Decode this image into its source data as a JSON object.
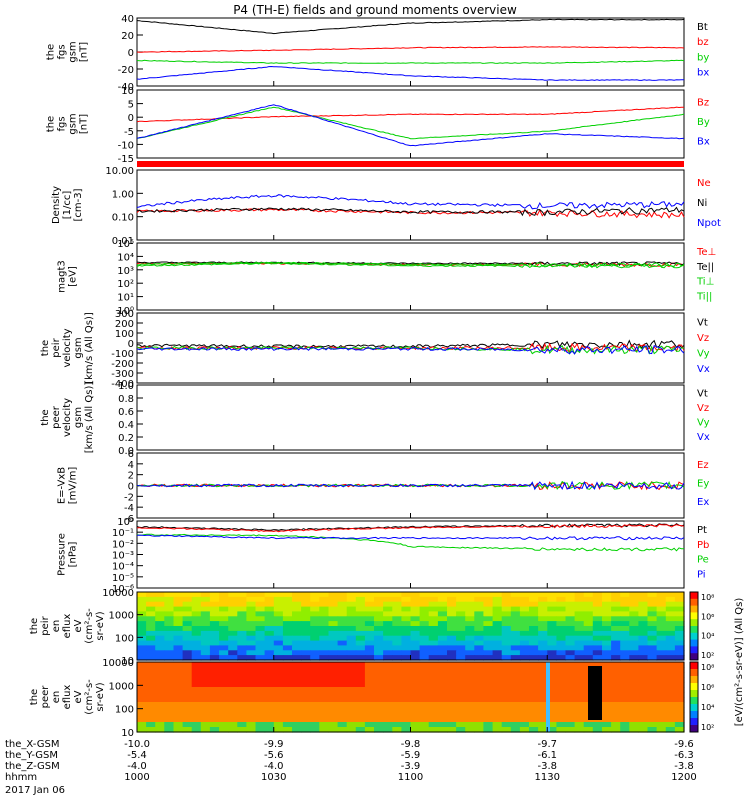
{
  "title": "P4 (TH-E) fields and ground moments overview",
  "date_label": "2017 Jan 06",
  "xaxis": {
    "rows": [
      {
        "label": "the_X-GSM",
        "values": [
          "-10.0",
          "-9.9",
          "-9.8",
          "-9.7",
          "-9.6"
        ]
      },
      {
        "label": "the_Y-GSM",
        "values": [
          "-5.4",
          "-5.6",
          "-5.9",
          "-6.1",
          "-6.3"
        ]
      },
      {
        "label": "the_Z-GSM",
        "values": [
          "-4.0",
          "-4.0",
          "-3.9",
          "-3.8",
          "-3.8"
        ]
      },
      {
        "label": "hhmm",
        "values": [
          "1000",
          "1030",
          "1100",
          "1130",
          "1200"
        ]
      }
    ]
  },
  "colors": {
    "black": "#000000",
    "red": "#ff0000",
    "green": "#00d000",
    "blue": "#0000ff"
  },
  "panels": [
    {
      "id": "fgs-gsm",
      "ylabel": [
        "the",
        "fgs",
        "gsm",
        "[nT]"
      ],
      "ylim": [
        -40,
        40
      ],
      "ticks": [
        "40",
        "20",
        "0",
        "-20",
        "-40"
      ],
      "legend": [
        {
          "text": "Bt",
          "color": "black"
        },
        {
          "text": "bz",
          "color": "red"
        },
        {
          "text": "by",
          "color": "green"
        },
        {
          "text": "bx",
          "color": "blue"
        }
      ]
    },
    {
      "id": "fgs-dsl",
      "ylabel": [
        "the",
        "fgs",
        "gsm",
        "[nT]"
      ],
      "ylim": [
        -18,
        10
      ],
      "ticks": [
        "10",
        "5",
        "0",
        "-5",
        "-10",
        "-15"
      ],
      "legend": [
        {
          "text": "Bz",
          "color": "red"
        },
        {
          "text": "By",
          "color": "green"
        },
        {
          "text": "Bx",
          "color": "blue"
        }
      ]
    },
    {
      "id": "density",
      "ylabel": [
        "Density",
        "[1/cc]",
        "[cm-3]"
      ],
      "ylim": [
        0.01,
        10
      ],
      "ticks": [
        "10.00",
        "1.00",
        "0.10",
        "0.01"
      ],
      "legend": [
        {
          "text": "Ne",
          "color": "red"
        },
        {
          "text": "Ni",
          "color": "black"
        },
        {
          "text": "Npot",
          "color": "blue"
        }
      ]
    },
    {
      "id": "temperature",
      "ylabel": [
        "magt3",
        "[eV]"
      ],
      "ylim": [
        1,
        100000
      ],
      "ticks": [
        "10⁵",
        "10⁴",
        "10³",
        "10²",
        "10¹",
        "10⁰"
      ],
      "legend": [
        {
          "text": "Te⊥",
          "color": "red"
        },
        {
          "text": "Te||",
          "color": "black"
        },
        {
          "text": "Ti⊥",
          "color": "green"
        },
        {
          "text": "Ti||",
          "color": "green"
        }
      ]
    },
    {
      "id": "peir-velocity",
      "ylabel": [
        "the",
        "peir",
        "velocity",
        "gsm",
        "[km/s (All Qs)]"
      ],
      "ylim": [
        -400,
        400
      ],
      "ticks": [
        "300",
        "200",
        "100",
        "0",
        "-100",
        "-200",
        "-300",
        "-400"
      ],
      "legend": [
        {
          "text": "Vt",
          "color": "black"
        },
        {
          "text": "Vz",
          "color": "red"
        },
        {
          "text": "Vy",
          "color": "green"
        },
        {
          "text": "Vx",
          "color": "blue"
        }
      ]
    },
    {
      "id": "peer-velocity",
      "ylabel": [
        "the",
        "peer",
        "velocity",
        "gsm",
        "[km/s (All Qs)]"
      ],
      "ylim": [
        0,
        1
      ],
      "ticks": [
        "1.0",
        "0.8",
        "0.6",
        "0.4",
        "0.2",
        "0.0"
      ],
      "legend": [
        {
          "text": "Vt",
          "color": "black"
        },
        {
          "text": "Vz",
          "color": "red"
        },
        {
          "text": "Vy",
          "color": "green"
        },
        {
          "text": "Vx",
          "color": "blue"
        }
      ]
    },
    {
      "id": "efield",
      "ylabel": [
        "E=-VxB",
        "[mV/m]"
      ],
      "ylim": [
        -6,
        6
      ],
      "ticks": [
        "6",
        "4",
        "2",
        "0",
        "-2",
        "-4",
        "-6"
      ],
      "legend": [
        {
          "text": "Ez",
          "color": "red"
        },
        {
          "text": "Ey",
          "color": "green"
        },
        {
          "text": "Ex",
          "color": "blue"
        }
      ]
    },
    {
      "id": "pressure",
      "ylabel": [
        "Pressure",
        "[nPa]"
      ],
      "ylim": [
        1e-06,
        1
      ],
      "ticks": [
        "10⁰",
        "10⁻¹",
        "10⁻²",
        "10⁻³",
        "10⁻⁴",
        "10⁻⁵",
        "10⁻⁶"
      ],
      "legend": [
        {
          "text": "Pt",
          "color": "black"
        },
        {
          "text": "Pb",
          "color": "red"
        },
        {
          "text": "Pe",
          "color": "green"
        },
        {
          "text": "Pi",
          "color": "blue"
        }
      ]
    },
    {
      "id": "peir-spec",
      "ylabel": [
        "the",
        "peir",
        "en",
        "eflux",
        "eV",
        "(cm²-s-",
        "sr-eV)"
      ],
      "ylim": [
        10,
        10000
      ],
      "ticks": [
        "10000",
        "1000",
        "100",
        "10"
      ]
    },
    {
      "id": "peer-spec",
      "ylabel": [
        "the",
        "peer",
        "en",
        "eflux",
        "eV",
        "(cm²-s-",
        "sr-eV)"
      ],
      "ylim": [
        10,
        10000
      ],
      "ticks": [
        "10000",
        "1000",
        "100",
        "10"
      ]
    }
  ],
  "colorbar": {
    "ticks": [
      "10⁸",
      "10⁶",
      "10⁴",
      "10²"
    ],
    "label": "[eV/(cm²-s-sr-eV)] (All Qs)"
  },
  "chart_data": {
    "type": "line",
    "title": "P4 (TH-E) fields and ground moments overview",
    "x": [
      "1000",
      "1030",
      "1100",
      "1130",
      "1200"
    ],
    "xlabel": "hhmm",
    "series": [
      {
        "name": "Bt",
        "panel": "fgs-gsm",
        "values": [
          37,
          22,
          34,
          38,
          38
        ]
      },
      {
        "name": "bz",
        "panel": "fgs-gsm",
        "values": [
          0,
          2,
          5,
          6,
          5
        ]
      },
      {
        "name": "by",
        "panel": "fgs-gsm",
        "values": [
          -10,
          -13,
          -13,
          -13,
          -10
        ]
      },
      {
        "name": "bx",
        "panel": "fgs-gsm",
        "values": [
          -32,
          -17,
          -28,
          -33,
          -33
        ]
      },
      {
        "name": "Bz",
        "panel": "fgs-dsl",
        "values": [
          -3,
          -1,
          0,
          0,
          3
        ]
      },
      {
        "name": "By",
        "panel": "fgs-dsl",
        "values": [
          -10,
          3,
          -10,
          -7,
          0
        ]
      },
      {
        "name": "Bx",
        "panel": "fgs-dsl",
        "values": [
          -10,
          4,
          -13,
          -8,
          -10
        ]
      },
      {
        "name": "Ne",
        "panel": "density",
        "values": [
          0.17,
          0.2,
          0.15,
          0.15,
          0.12
        ]
      },
      {
        "name": "Ni",
        "panel": "density",
        "values": [
          0.17,
          0.22,
          0.16,
          0.16,
          0.2
        ]
      },
      {
        "name": "Npot",
        "panel": "density",
        "values": [
          0.25,
          0.8,
          0.35,
          0.3,
          0.35
        ]
      },
      {
        "name": "Te⊥",
        "panel": "temperature",
        "values": [
          3000,
          3000,
          2500,
          2500,
          2500
        ]
      },
      {
        "name": "Te||",
        "panel": "temperature",
        "values": [
          3500,
          3500,
          3000,
          3000,
          3000
        ]
      },
      {
        "name": "Ti⊥",
        "panel": "temperature",
        "values": [
          2000,
          3000,
          2000,
          2000,
          2000
        ]
      },
      {
        "name": "Ti||",
        "panel": "temperature",
        "values": [
          2500,
          3500,
          2500,
          2500,
          2500
        ]
      },
      {
        "name": "Vt",
        "panel": "peir-velocity",
        "values": [
          30,
          20,
          20,
          40,
          50
        ]
      },
      {
        "name": "Vz",
        "panel": "peir-velocity",
        "values": [
          0,
          0,
          0,
          0,
          0
        ]
      },
      {
        "name": "Vy",
        "panel": "peir-velocity",
        "values": [
          0,
          0,
          0,
          -20,
          -20
        ]
      },
      {
        "name": "Vx",
        "panel": "peir-velocity",
        "values": [
          -10,
          -10,
          -10,
          -20,
          -20
        ]
      },
      {
        "name": "Ez",
        "panel": "efield",
        "values": [
          0,
          0,
          0,
          0,
          0
        ]
      },
      {
        "name": "Ey",
        "panel": "efield",
        "values": [
          0,
          0,
          0,
          0,
          0
        ]
      },
      {
        "name": "Ex",
        "panel": "efield",
        "values": [
          0,
          0,
          0,
          0,
          0
        ]
      },
      {
        "name": "Pt",
        "panel": "pressure",
        "values": [
          0.3,
          0.15,
          0.3,
          0.4,
          0.45
        ]
      },
      {
        "name": "Pb",
        "panel": "pressure",
        "values": [
          0.25,
          0.12,
          0.25,
          0.35,
          0.4
        ]
      },
      {
        "name": "Pe",
        "panel": "pressure",
        "values": [
          0.06,
          0.05,
          0.005,
          0.003,
          0.003
        ]
      },
      {
        "name": "Pi",
        "panel": "pressure",
        "values": [
          0.05,
          0.03,
          0.03,
          0.03,
          0.03
        ]
      }
    ]
  }
}
